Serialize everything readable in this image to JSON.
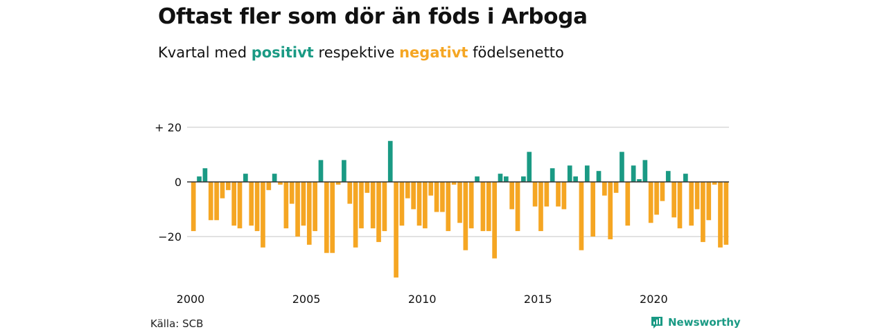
{
  "title": "Oftast fler som dör än föds i Arboga",
  "subtitle": {
    "prefix": "Kvartal med",
    "positive": "positivt",
    "middle": "respektive",
    "negative": "negativt",
    "suffix": "födelsenetto"
  },
  "source": "Källa: SCB",
  "brand": "Newsworthy",
  "colors": {
    "positive": "#1a9a84",
    "negative": "#f5a623",
    "grid": "#d9d9d9",
    "zero": "#333333"
  },
  "chart_data": {
    "type": "bar",
    "x_start": "2000 Q1",
    "xlabel": "",
    "ylabel": "",
    "ylim": [
      -35,
      20
    ],
    "y_ticks": [
      20,
      0,
      -20
    ],
    "y_tick_labels": [
      "+ 20",
      "0",
      "−20"
    ],
    "x_ticks": [
      2000,
      2005,
      2010,
      2015,
      2020
    ],
    "x_tick_labels": [
      "2000",
      "2005",
      "2010",
      "2015",
      "2020"
    ],
    "grid": true,
    "values": [
      -18,
      2,
      5,
      -14,
      -14,
      -6,
      -3,
      -16,
      -17,
      3,
      -16,
      -18,
      -24,
      -3,
      3,
      -1,
      -17,
      -8,
      -20,
      -16,
      -23,
      -18,
      8,
      -26,
      -26,
      -1,
      8,
      -8,
      -24,
      -17,
      -4,
      -17,
      -22,
      -18,
      15,
      -35,
      -16,
      -6,
      -10,
      -16,
      -17,
      -5,
      -11,
      -11,
      -18,
      -1,
      -15,
      -25,
      -17,
      2,
      -18,
      -18,
      -28,
      3,
      2,
      -10,
      -18,
      2,
      11,
      -9,
      -18,
      -9,
      5,
      -9,
      -10,
      6,
      2,
      -25,
      6,
      -20,
      4,
      -5,
      -21,
      -4,
      11,
      -16,
      6,
      1,
      8,
      -15,
      -12,
      -7,
      4,
      -13,
      -17,
      3,
      -16,
      -10,
      -22,
      -14,
      -1,
      -24,
      -23
    ]
  }
}
